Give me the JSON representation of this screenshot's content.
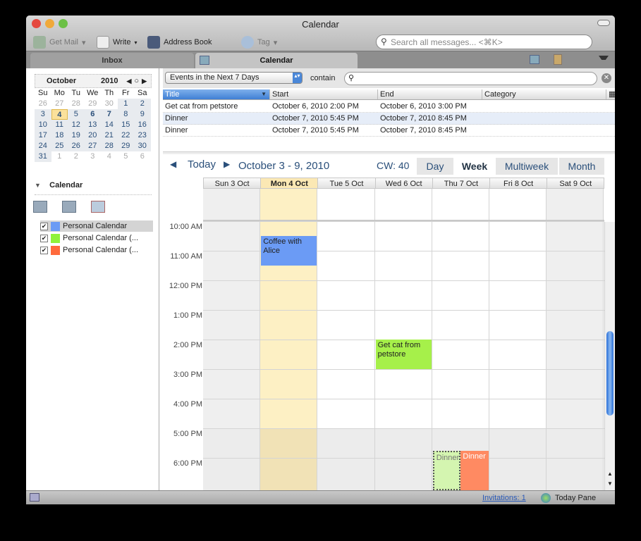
{
  "window": {
    "title": "Calendar"
  },
  "toolbar": {
    "get_mail": "Get Mail",
    "write": "Write",
    "address_book": "Address Book",
    "tag": "Tag",
    "search_placeholder": "Search all messages... <⌘K>"
  },
  "tabs": [
    {
      "label": "Inbox"
    },
    {
      "label": "Calendar"
    }
  ],
  "minical": {
    "month": "October",
    "year": "2010",
    "dow": [
      "Su",
      "Mo",
      "Tu",
      "We",
      "Th",
      "Fr",
      "Sa"
    ],
    "weeks": [
      [
        "26",
        "27",
        "28",
        "29",
        "30",
        "1",
        "2"
      ],
      [
        "3",
        "4",
        "5",
        "6",
        "7",
        "8",
        "9"
      ],
      [
        "10",
        "11",
        "12",
        "13",
        "14",
        "15",
        "16"
      ],
      [
        "17",
        "18",
        "19",
        "20",
        "21",
        "22",
        "23"
      ],
      [
        "24",
        "25",
        "26",
        "27",
        "28",
        "29",
        "30"
      ],
      [
        "31",
        "1",
        "2",
        "3",
        "4",
        "5",
        "6"
      ]
    ],
    "selected": "4"
  },
  "calendars": {
    "header": "Calendar",
    "items": [
      {
        "name": "Personal Calendar",
        "color": "#6b9bf5",
        "checked": true
      },
      {
        "name": "Personal Calendar (...",
        "color": "#8ff23a",
        "checked": true
      },
      {
        "name": "Personal Calendar (...",
        "color": "#ff6a3c",
        "checked": true
      }
    ]
  },
  "filter": {
    "selected": "Events in the Next 7 Days",
    "contain_label": "contain",
    "search_value": ""
  },
  "event_list": {
    "columns": [
      "Title",
      "Start",
      "End",
      "Category"
    ],
    "rows": [
      [
        "Get cat from petstore",
        "October 6, 2010 2:00 PM",
        "October 6, 2010 3:00 PM",
        ""
      ],
      [
        "Dinner",
        "October 7, 2010 5:45 PM",
        "October 7, 2010 8:45 PM",
        ""
      ],
      [
        "Dinner",
        "October 7, 2010 5:45 PM",
        "October 7, 2010 8:45 PM",
        ""
      ]
    ]
  },
  "nav": {
    "today": "Today",
    "range": "October 3 - 9, 2010",
    "cw": "CW: 40",
    "views": [
      "Day",
      "Week",
      "Multiweek",
      "Month"
    ],
    "active_view": "Week"
  },
  "week": {
    "days": [
      "Sun 3 Oct",
      "Mon 4 Oct",
      "Tue 5 Oct",
      "Wed 6 Oct",
      "Thu 7 Oct",
      "Fri 8 Oct",
      "Sat 9 Oct"
    ],
    "hours": [
      "10:00 AM",
      "11:00 AM",
      "12:00 PM",
      "1:00 PM",
      "2:00 PM",
      "3:00 PM",
      "4:00 PM",
      "5:00 PM",
      "6:00 PM"
    ],
    "events": [
      {
        "title": "Coffee with Alice",
        "day": 1,
        "start": 10.5,
        "end": 11.5,
        "color": "#6b9bf5"
      },
      {
        "title": "Get cat from petstore",
        "day": 3,
        "start": 14,
        "end": 15,
        "color": "#a6f04a"
      },
      {
        "title": "Dinner",
        "day": 4,
        "start": 17.75,
        "end": 20.75,
        "color": "#d4f5b0",
        "half": 0,
        "style": "dotted"
      },
      {
        "title": "Dinner",
        "day": 4,
        "start": 17.75,
        "end": 20.75,
        "color": "#ff8a62",
        "half": 1
      }
    ]
  },
  "status": {
    "invitations": "Invitations: 1",
    "today_pane": "Today Pane"
  }
}
